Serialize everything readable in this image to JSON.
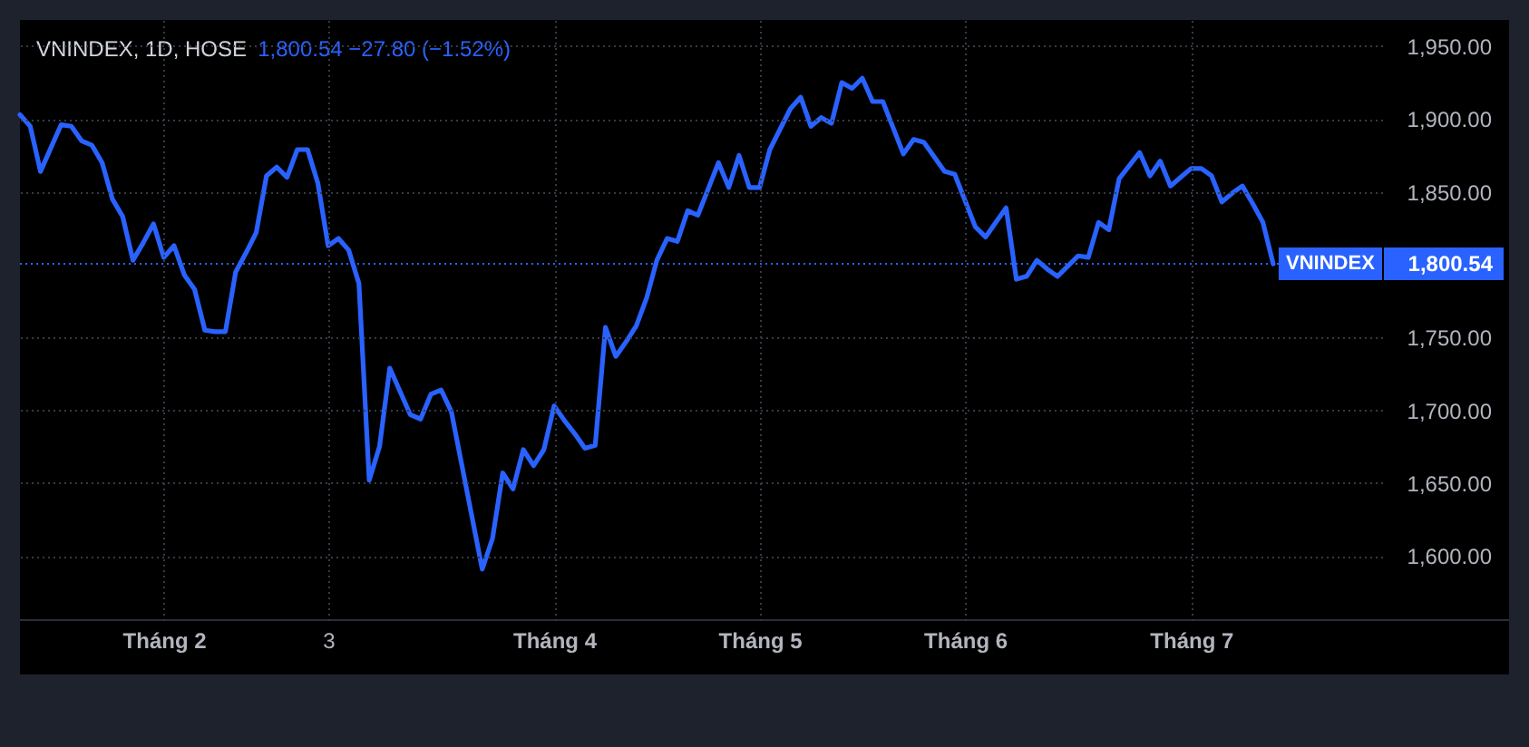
{
  "chart_data": {
    "type": "line",
    "title": "VNINDEX, 1D, HOSE",
    "subtitle": "1,800.54 −27.80 (−1.52%)",
    "categories": [
      null,
      null,
      null,
      null,
      null,
      null,
      null,
      null,
      null,
      null,
      null,
      null,
      null,
      null,
      "Tháng 2",
      null,
      null,
      null,
      null,
      null,
      null,
      null,
      null,
      null,
      null,
      null,
      null,
      null,
      null,
      null,
      "3",
      null,
      null,
      null,
      null,
      null,
      null,
      null,
      null,
      null,
      null,
      null,
      null,
      null,
      null,
      null,
      null,
      null,
      null,
      null,
      null,
      null,
      "Tháng 4",
      null,
      null,
      null,
      null,
      null,
      null,
      null,
      null,
      null,
      null,
      null,
      null,
      null,
      null,
      null,
      null,
      null,
      null,
      null,
      "Tháng 5",
      null,
      null,
      null,
      null,
      null,
      null,
      null,
      null,
      null,
      null,
      null,
      null,
      null,
      null,
      null,
      null,
      null,
      null,
      null,
      "Tháng 6",
      null,
      null,
      null,
      null,
      null,
      null,
      null,
      null,
      null,
      null,
      null,
      null,
      null,
      null,
      null,
      null,
      null,
      null,
      null,
      null,
      null,
      "Tháng 7",
      null,
      null,
      null,
      null,
      null,
      null,
      null,
      null
    ],
    "series": [
      {
        "name": "VNINDEX",
        "color": "#2962ff",
        "values": [
          1903,
          1895,
          1864,
          1880,
          1896,
          1895,
          1885,
          1882,
          1870,
          1845,
          1833,
          1803,
          1815,
          1828,
          1805,
          1813,
          1793,
          1783,
          1755,
          1754,
          1754,
          1795,
          1808,
          1822,
          1861,
          1867,
          1860,
          1879,
          1879,
          1856,
          1813,
          1818,
          1810,
          1787,
          1652,
          1675,
          1729,
          1713,
          1697,
          1694,
          1711,
          1714,
          1699,
          1663,
          1627,
          1591,
          1612,
          1657,
          1646,
          1673,
          1662,
          1673,
          1703,
          1693,
          1684,
          1674,
          1676,
          1757,
          1737,
          1747,
          1758,
          1777,
          1803,
          1818,
          1816,
          1837,
          1834,
          1852,
          1870,
          1853,
          1875,
          1853,
          1853,
          1879,
          1893,
          1907,
          1915,
          1895,
          1901,
          1897,
          1925,
          1921,
          1928,
          1912,
          1912,
          1894,
          1876,
          1886,
          1884,
          1874,
          1864,
          1862,
          1844,
          1826,
          1819,
          1829,
          1839,
          1790,
          1792,
          1803,
          1797,
          1792,
          1799,
          1806,
          1805,
          1829,
          1824,
          1859,
          1868,
          1877,
          1861,
          1871,
          1854,
          1860,
          1866,
          1866,
          1861,
          1843,
          1849,
          1854,
          1842,
          1829,
          1800.54
        ]
      }
    ],
    "ylim": [
      1556,
      1968
    ],
    "yticks": [
      {
        "value": 1600,
        "label": "1,600.00"
      },
      {
        "value": 1650,
        "label": "1,650.00"
      },
      {
        "value": 1700,
        "label": "1,700.00"
      },
      {
        "value": 1750,
        "label": "1,750.00"
      },
      {
        "value": 1850,
        "label": "1,850.00"
      },
      {
        "value": 1900,
        "label": "1,900.00"
      },
      {
        "value": 1950,
        "label": "1,950.00"
      }
    ],
    "ref_lines": [
      {
        "axis": "y",
        "value": 1800.54,
        "label": "1,800.54",
        "color": "#2962ff",
        "line_style": "dotted"
      }
    ],
    "grid": true
  }
}
